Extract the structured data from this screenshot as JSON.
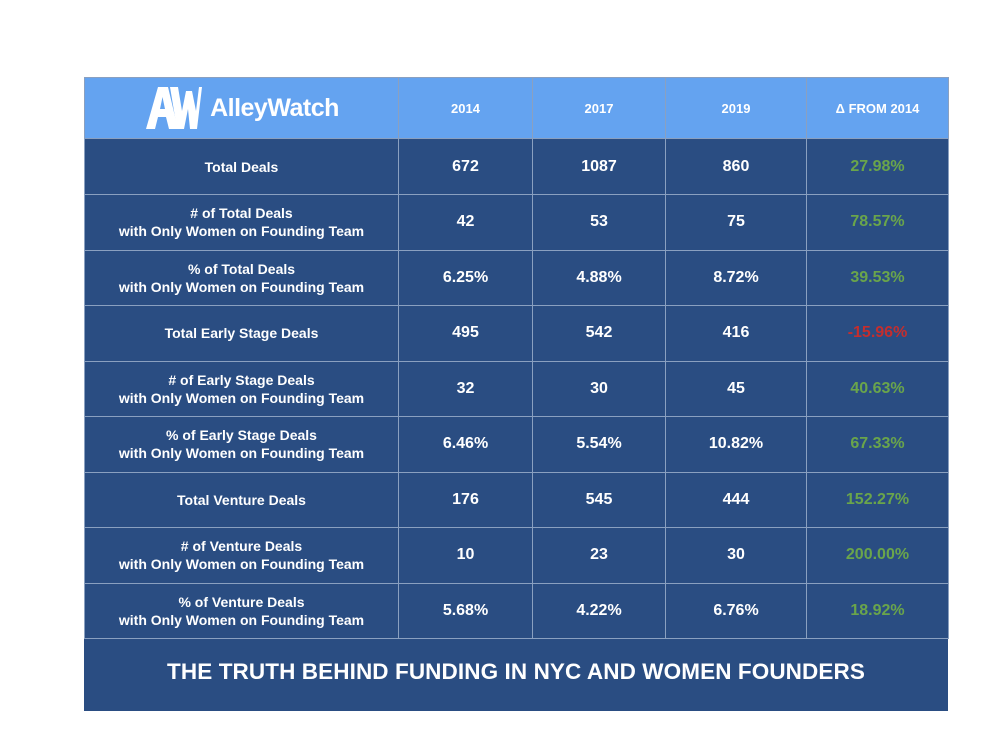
{
  "brand": {
    "logo_letters": "AW",
    "name": "AlleyWatch"
  },
  "footer": {
    "title": "THE TRUTH BEHIND FUNDING IN NYC AND WOMEN FOUNDERS"
  },
  "colors": {
    "header_bg": "#64a3f0",
    "body_bg": "#2a4d82",
    "positive": "#6aa54b",
    "negative": "#c42e2e"
  },
  "chart_data": {
    "type": "table",
    "columns": [
      "2014",
      "2017",
      "2019",
      "Δ FROM 2014"
    ],
    "rows": [
      {
        "label": [
          "Total Deals"
        ],
        "values": [
          "672",
          "1087",
          "860"
        ],
        "delta": "27.98%",
        "trend": "positive"
      },
      {
        "label": [
          "# of Total Deals",
          "with Only Women on Founding Team"
        ],
        "values": [
          "42",
          "53",
          "75"
        ],
        "delta": "78.57%",
        "trend": "positive"
      },
      {
        "label": [
          "% of Total Deals",
          "with Only Women on Founding Team"
        ],
        "values": [
          "6.25%",
          "4.88%",
          "8.72%"
        ],
        "delta": "39.53%",
        "trend": "positive"
      },
      {
        "label": [
          "Total Early Stage Deals"
        ],
        "values": [
          "495",
          "542",
          "416"
        ],
        "delta": "-15.96%",
        "trend": "negative"
      },
      {
        "label": [
          "# of Early Stage Deals",
          "with Only Women on Founding Team"
        ],
        "values": [
          "32",
          "30",
          "45"
        ],
        "delta": "40.63%",
        "trend": "positive"
      },
      {
        "label": [
          "% of Early Stage Deals",
          "with Only Women on Founding Team"
        ],
        "values": [
          "6.46%",
          "5.54%",
          "10.82%"
        ],
        "delta": "67.33%",
        "trend": "positive"
      },
      {
        "label": [
          "Total Venture Deals"
        ],
        "values": [
          "176",
          "545",
          "444"
        ],
        "delta": "152.27%",
        "trend": "positive"
      },
      {
        "label": [
          "# of Venture Deals",
          "with Only Women on Founding Team"
        ],
        "values": [
          "10",
          "23",
          "30"
        ],
        "delta": "200.00%",
        "trend": "positive"
      },
      {
        "label": [
          "% of Venture Deals",
          "with Only Women on Founding Team"
        ],
        "values": [
          "5.68%",
          "4.22%",
          "6.76%"
        ],
        "delta": "18.92%",
        "trend": "positive"
      }
    ]
  }
}
